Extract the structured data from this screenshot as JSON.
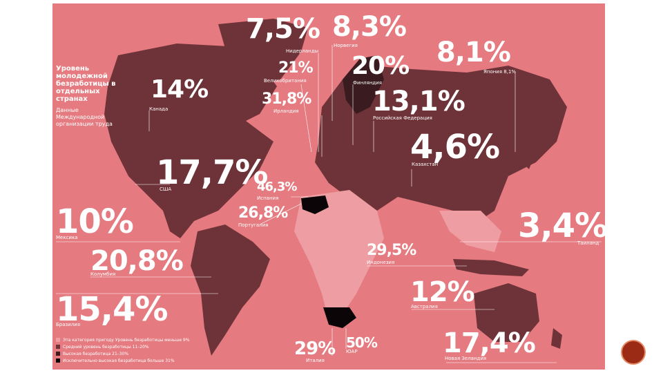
{
  "title": "Уровень молодежной безработицы в отдельных странах",
  "source": "Данные Международной организации труда",
  "colors": {
    "background": "#e57b80",
    "low": "#ee9ea2",
    "medium": "#6e3338",
    "high": "#3a1c20",
    "very_high": "#0b0507",
    "text": "#ffffff"
  },
  "legend": [
    {
      "label": "Эта категория пригоду Уровень безработицы меньше 9%",
      "color": "#ee9ea2"
    },
    {
      "label": "Средний уровень безработицы 11–20%",
      "color": "#6e3338"
    },
    {
      "label": "Высокая безработица 21–30%",
      "color": "#3a1c20"
    },
    {
      "label": "Исключительно высокая безработица больше 31%",
      "color": "#0b0507"
    }
  ],
  "countries": [
    {
      "id": "netherlands",
      "value": "7,5%",
      "name": "Нидерланды"
    },
    {
      "id": "norway",
      "value": "8,3%",
      "name": "Норвегия"
    },
    {
      "id": "japan",
      "value": "8,1%",
      "name": "Япония 8,1%"
    },
    {
      "id": "uk",
      "value": "21%",
      "name": "Великобритания"
    },
    {
      "id": "finland",
      "value": "20%",
      "name": "Финляндия"
    },
    {
      "id": "canada",
      "value": "14%",
      "name": "Канада"
    },
    {
      "id": "ireland",
      "value": "31,8%",
      "name": "Ирландия"
    },
    {
      "id": "russia",
      "value": "13,1%",
      "name": "Российская Федерация"
    },
    {
      "id": "kazakhstan",
      "value": "4,6%",
      "name": "Казахстан"
    },
    {
      "id": "usa",
      "value": "17,7%",
      "name": "США"
    },
    {
      "id": "spain",
      "value": "46,3%",
      "name": "Испания"
    },
    {
      "id": "portugal",
      "value": "26,8%",
      "name": "Португалия"
    },
    {
      "id": "thailand",
      "value": "3,4%",
      "name": "Таиланд"
    },
    {
      "id": "mexico",
      "value": "10%",
      "name": "Мексика"
    },
    {
      "id": "indonesia",
      "value": "29,5%",
      "name": "Индонезия"
    },
    {
      "id": "colombia",
      "value": "20,8%",
      "name": "Колумбия"
    },
    {
      "id": "australia",
      "value": "12%",
      "name": "Австралия"
    },
    {
      "id": "brazil",
      "value": "15,4%",
      "name": "Бразилия"
    },
    {
      "id": "italy",
      "value": "29%",
      "name": "Италия"
    },
    {
      "id": "south_africa",
      "value": "50%",
      "name": "ЮАР"
    },
    {
      "id": "new_zealand",
      "value": "17,4%",
      "name": "Новая Зеландия"
    }
  ]
}
